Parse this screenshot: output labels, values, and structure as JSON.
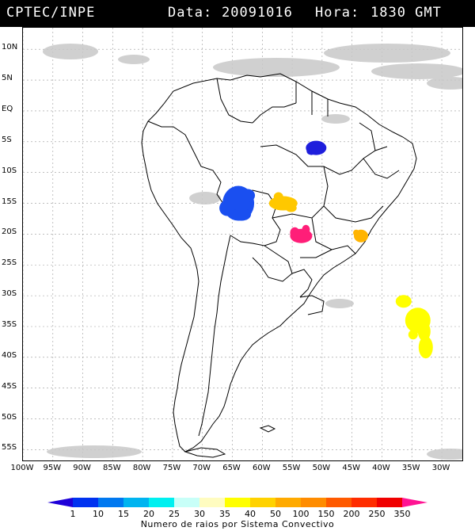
{
  "header": {
    "institution": "CPTEC/INPE",
    "date_label": "Data:",
    "date_value": "20091016",
    "time_label": "Hora:",
    "time_value": "1830 GMT"
  },
  "map": {
    "lat_labels": [
      "10N",
      "5N",
      "EQ",
      "5S",
      "10S",
      "15S",
      "20S",
      "25S",
      "30S",
      "35S",
      "40S",
      "45S",
      "50S",
      "55S"
    ],
    "lon_labels": [
      "100W",
      "95W",
      "90W",
      "85W",
      "80W",
      "75W",
      "70W",
      "65W",
      "60W",
      "55W",
      "50W",
      "45W",
      "40W",
      "35W",
      "30W"
    ],
    "lat_values": [
      10,
      5,
      0,
      -5,
      -10,
      -15,
      -20,
      -25,
      -30,
      -35,
      -40,
      -45,
      -50,
      -55
    ],
    "lon_values": [
      -100,
      -95,
      -90,
      -85,
      -80,
      -75,
      -70,
      -65,
      -60,
      -55,
      -50,
      -45,
      -40,
      -35,
      -30
    ]
  },
  "legend": {
    "ticks": [
      "1",
      "10",
      "15",
      "20",
      "25",
      "30",
      "35",
      "40",
      "50",
      "100",
      "150",
      "200",
      "250",
      "350"
    ],
    "colors": [
      "#1e00d8",
      "#0032f0",
      "#0078f0",
      "#00b4f0",
      "#00f0f0",
      "#c8fff8",
      "#fffcc0",
      "#ffff00",
      "#ffd200",
      "#ffaa00",
      "#ff8c00",
      "#ff5a00",
      "#ff2d00",
      "#f00000",
      "#ff1493"
    ],
    "caption": "Numero de raios por Sistema Convectivo"
  },
  "storms": [
    {
      "name": "storm-blue-amazon",
      "color": "#1a4ff0",
      "lon": -64,
      "lat": -15
    },
    {
      "name": "storm-darkblue-para",
      "color": "#1e1edc",
      "lon": -51,
      "lat": -6
    },
    {
      "name": "storm-orange-mato-grosso",
      "color": "#ffc800",
      "lon": -56.5,
      "lat": -15
    },
    {
      "name": "storm-magenta-mato-grosso-sul",
      "color": "#ff1e78",
      "lon": -53.5,
      "lat": -20.3
    },
    {
      "name": "storm-orange-minas",
      "color": "#ffb400",
      "lon": -43.5,
      "lat": -20.3
    },
    {
      "name": "storm-yellow-atlantic",
      "color": "#ffff00",
      "lon": -34,
      "lat": -34
    }
  ]
}
